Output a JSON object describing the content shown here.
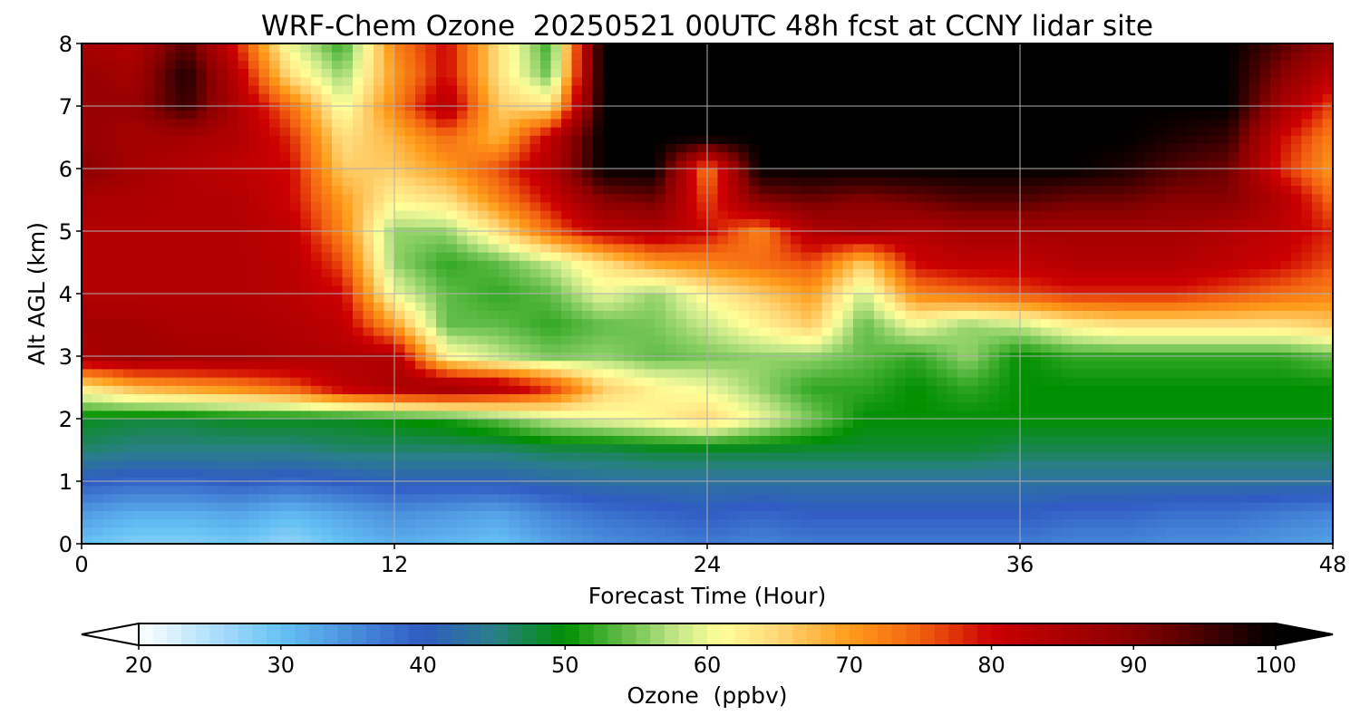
{
  "chart_data": {
    "type": "heatmap",
    "title": "WRF-Chem Ozone  20250521 00UTC 48h fcst at CCNY lidar site",
    "xlabel": "Forecast Time (Hour)",
    "ylabel": "Alt AGL (km)",
    "xlim": [
      0,
      48
    ],
    "ylim": [
      0,
      8
    ],
    "xticks": [
      0,
      12,
      24,
      36,
      48
    ],
    "yticks": [
      0,
      1,
      2,
      3,
      4,
      5,
      6,
      7,
      8
    ],
    "grid": true,
    "x": [
      0,
      2,
      4,
      6,
      8,
      10,
      12,
      14,
      16,
      18,
      20,
      22,
      24,
      26,
      28,
      30,
      32,
      34,
      36,
      38,
      40,
      42,
      44,
      46,
      48
    ],
    "y": [
      0,
      0.5,
      1,
      1.5,
      2,
      2.5,
      3,
      3.5,
      4,
      4.5,
      5,
      5.5,
      6,
      6.5,
      7,
      7.5,
      8
    ],
    "z": [
      [
        30,
        28,
        28,
        29,
        27,
        30,
        32,
        31,
        30,
        33,
        35,
        36,
        37,
        36,
        37,
        37,
        37,
        37,
        37,
        36,
        36,
        35,
        35,
        34,
        33
      ],
      [
        34,
        32,
        32,
        33,
        31,
        33,
        35,
        34,
        33,
        36,
        38,
        39,
        40,
        39,
        40,
        40,
        40,
        40,
        40,
        39,
        39,
        38,
        38,
        37,
        36
      ],
      [
        40,
        39,
        39,
        40,
        39,
        40,
        41,
        41,
        41,
        42,
        43,
        43,
        43,
        43,
        43,
        43,
        43,
        43,
        43,
        43,
        43,
        43,
        43,
        43,
        43
      ],
      [
        46,
        45,
        45,
        45,
        45,
        46,
        46,
        46,
        46,
        47,
        47,
        48,
        48,
        48,
        48,
        48,
        48,
        48,
        47,
        47,
        47,
        47,
        47,
        47,
        47
      ],
      [
        49,
        48,
        48,
        49,
        49,
        49,
        50,
        51,
        54,
        58,
        60,
        62,
        65,
        60,
        55,
        50,
        50,
        50,
        50,
        50,
        50,
        50,
        50,
        50,
        50
      ],
      [
        63,
        68,
        70,
        72,
        75,
        82,
        86,
        88,
        85,
        78,
        66,
        62,
        60,
        56,
        52,
        52,
        50,
        52,
        50,
        50,
        50,
        50,
        50,
        50,
        50
      ],
      [
        85,
        87,
        86,
        86,
        85,
        84,
        84,
        62,
        58,
        55,
        56,
        54,
        55,
        56,
        56,
        54,
        52,
        56,
        50,
        52,
        52,
        52,
        52,
        52,
        54
      ],
      [
        86,
        86,
        85,
        85,
        84,
        82,
        70,
        54,
        54,
        52,
        54,
        55,
        58,
        62,
        66,
        54,
        60,
        56,
        58,
        62,
        64,
        64,
        64,
        64,
        66
      ],
      [
        84,
        84,
        84,
        84,
        83,
        80,
        60,
        54,
        52,
        54,
        60,
        56,
        62,
        66,
        70,
        58,
        72,
        74,
        76,
        78,
        78,
        78,
        76,
        74,
        72
      ],
      [
        84,
        84,
        84,
        84,
        83,
        76,
        56,
        52,
        54,
        58,
        64,
        70,
        72,
        74,
        76,
        66,
        80,
        82,
        82,
        84,
        84,
        84,
        82,
        80,
        76
      ],
      [
        84,
        84,
        84,
        84,
        82,
        72,
        56,
        56,
        64,
        74,
        82,
        84,
        80,
        72,
        84,
        86,
        84,
        86,
        86,
        86,
        86,
        86,
        84,
        82,
        78
      ],
      [
        85,
        85,
        84,
        84,
        80,
        70,
        62,
        64,
        72,
        80,
        90,
        92,
        76,
        90,
        92,
        90,
        92,
        94,
        94,
        92,
        92,
        90,
        90,
        84,
        74
      ],
      [
        90,
        86,
        84,
        82,
        80,
        66,
        66,
        70,
        76,
        84,
        100,
        100,
        72,
        100,
        100,
        100,
        100,
        100,
        100,
        100,
        98,
        94,
        92,
        78,
        70
      ],
      [
        88,
        86,
        86,
        84,
        78,
        64,
        68,
        74,
        68,
        82,
        100,
        100,
        100,
        100,
        100,
        100,
        100,
        100,
        100,
        100,
        100,
        98,
        96,
        80,
        72
      ],
      [
        88,
        88,
        96,
        84,
        74,
        60,
        72,
        84,
        66,
        64,
        100,
        100,
        100,
        100,
        100,
        100,
        100,
        100,
        100,
        100,
        100,
        100,
        100,
        86,
        76
      ],
      [
        88,
        86,
        98,
        82,
        64,
        56,
        70,
        80,
        64,
        54,
        100,
        100,
        100,
        100,
        100,
        100,
        100,
        100,
        100,
        100,
        100,
        100,
        100,
        90,
        82
      ],
      [
        86,
        84,
        94,
        78,
        60,
        52,
        72,
        80,
        64,
        52,
        100,
        100,
        100,
        100,
        100,
        100,
        100,
        100,
        100,
        100,
        100,
        100,
        100,
        94,
        88
      ]
    ],
    "colorbar": {
      "label": "Ozone  (ppbv)",
      "min": 20,
      "max": 100,
      "ticks": [
        20,
        30,
        40,
        50,
        60,
        70,
        80,
        90,
        100
      ],
      "extend": "both",
      "orientation": "horizontal",
      "stops": [
        {
          "v": 20,
          "c": "#ffffff"
        },
        {
          "v": 30,
          "c": "#66c2f5"
        },
        {
          "v": 40,
          "c": "#2f5cc4"
        },
        {
          "v": 45,
          "c": "#2a7f88"
        },
        {
          "v": 50,
          "c": "#008f00"
        },
        {
          "v": 55,
          "c": "#79c857"
        },
        {
          "v": 58,
          "c": "#c8e88a"
        },
        {
          "v": 61,
          "c": "#ffff99"
        },
        {
          "v": 65,
          "c": "#ffd777"
        },
        {
          "v": 70,
          "c": "#ff9c1a"
        },
        {
          "v": 75,
          "c": "#f26010"
        },
        {
          "v": 80,
          "c": "#cc0000"
        },
        {
          "v": 90,
          "c": "#8a0000"
        },
        {
          "v": 100,
          "c": "#000000"
        }
      ],
      "under_color": "#ffffff",
      "over_color": "#000000"
    }
  }
}
